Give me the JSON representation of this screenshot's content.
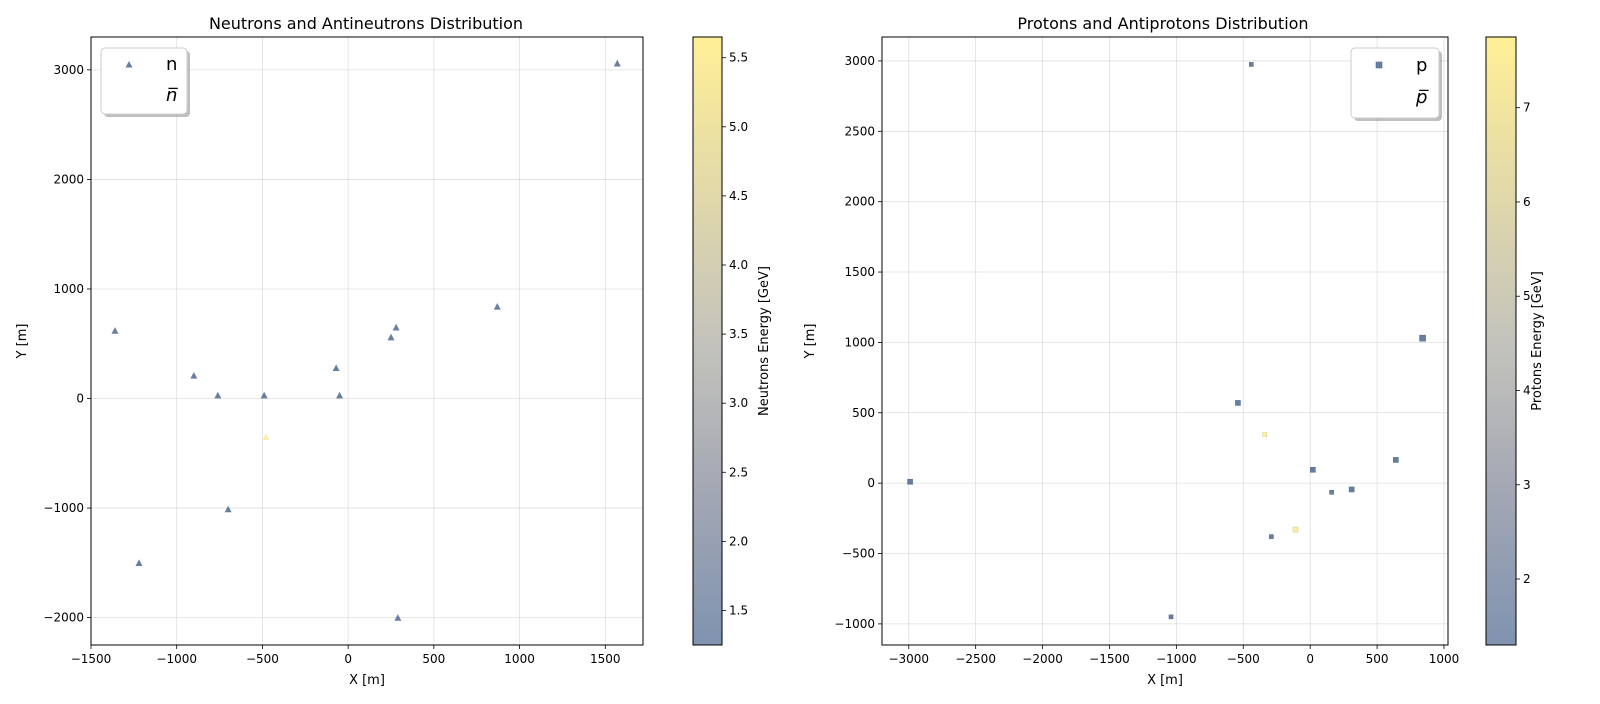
{
  "chart_data": [
    {
      "type": "scatter",
      "title": "Neutrons and Antineutrons Distribution",
      "xlabel": "X [m]",
      "ylabel": "Y [m]",
      "xlim": [
        -1500,
        1720
      ],
      "ylim": [
        -2250,
        3300
      ],
      "xticks": [
        -1500,
        -1000,
        -500,
        0,
        500,
        1000,
        1500
      ],
      "yticks": [
        -2000,
        -1000,
        0,
        1000,
        2000,
        3000
      ],
      "xtick_labels": [
        "−1500",
        "−1000",
        "−500",
        "0",
        "500",
        "1000",
        "1500"
      ],
      "ytick_labels": [
        "−2000",
        "−1000",
        "0",
        "1000",
        "2000",
        "3000"
      ],
      "grid": true,
      "marker": "triangle",
      "legend": {
        "position": "top-left",
        "entries": [
          "n",
          "n̅"
        ]
      },
      "colorbar": {
        "label": "Neutrons Energy [GeV]",
        "min": 1.25,
        "max": 5.65,
        "ticks": [
          1.5,
          2.0,
          2.5,
          3.0,
          3.5,
          4.0,
          4.5,
          5.0,
          5.5
        ],
        "tick_labels": [
          "1.5",
          "2.0",
          "2.5",
          "3.0",
          "3.5",
          "4.0",
          "4.5",
          "5.0",
          "5.5"
        ]
      },
      "series": [
        {
          "name": "n",
          "points": [
            {
              "x": -1360,
              "y": 620,
              "energy": 1.6
            },
            {
              "x": -1220,
              "y": -1500,
              "energy": 1.5
            },
            {
              "x": -900,
              "y": 210,
              "energy": 1.5
            },
            {
              "x": -760,
              "y": 30,
              "energy": 1.6
            },
            {
              "x": -700,
              "y": -1010,
              "energy": 1.5
            },
            {
              "x": -490,
              "y": 30,
              "energy": 1.7
            },
            {
              "x": -70,
              "y": 280,
              "energy": 1.6
            },
            {
              "x": -50,
              "y": 30,
              "energy": 1.5
            },
            {
              "x": 250,
              "y": 560,
              "energy": 1.9
            },
            {
              "x": 280,
              "y": 650,
              "energy": 2.2
            },
            {
              "x": 290,
              "y": -2000,
              "energy": 1.6
            },
            {
              "x": 870,
              "y": 840,
              "energy": 1.5
            },
            {
              "x": 1570,
              "y": 3060,
              "energy": 1.5
            }
          ]
        },
        {
          "name": "n̅",
          "points": [
            {
              "x": -480,
              "y": -350,
              "energy": 5.5
            }
          ]
        }
      ]
    },
    {
      "type": "scatter",
      "title": "Protons and Antiprotons Distribution",
      "xlabel": "X [m]",
      "ylabel": "Y [m]",
      "xlim": [
        -3200,
        1030
      ],
      "ylim": [
        -1150,
        3170
      ],
      "xticks": [
        -3000,
        -2500,
        -2000,
        -1500,
        -1000,
        -500,
        0,
        500,
        1000
      ],
      "yticks": [
        -1000,
        -500,
        0,
        500,
        1000,
        1500,
        2000,
        2500,
        3000
      ],
      "xtick_labels": [
        "−3000",
        "−2500",
        "−2000",
        "−1500",
        "−1000",
        "−500",
        "0",
        "500",
        "1000"
      ],
      "ytick_labels": [
        "−1000",
        "−500",
        "0",
        "500",
        "1000",
        "1500",
        "2000",
        "2500",
        "3000"
      ],
      "grid": true,
      "marker": "square",
      "legend": {
        "position": "top-right",
        "entries": [
          "p",
          "p̅"
        ]
      },
      "colorbar": {
        "label": "Protons Energy [GeV]",
        "min": 1.3,
        "max": 7.75,
        "ticks": [
          2,
          3,
          4,
          5,
          6,
          7
        ],
        "tick_labels": [
          "2",
          "3",
          "4",
          "5",
          "6",
          "7"
        ]
      },
      "series": [
        {
          "name": "p",
          "points": [
            {
              "x": -2990,
              "y": 10,
              "energy": 1.8,
              "size": 5
            },
            {
              "x": -1040,
              "y": -950,
              "energy": 1.6,
              "size": 4
            },
            {
              "x": -540,
              "y": 570,
              "energy": 1.6,
              "size": 5
            },
            {
              "x": -440,
              "y": 2975,
              "energy": 1.5,
              "size": 4
            },
            {
              "x": -290,
              "y": -380,
              "energy": 2.2,
              "size": 4
            },
            {
              "x": 20,
              "y": 95,
              "energy": 1.8,
              "size": 5
            },
            {
              "x": 160,
              "y": -65,
              "energy": 3.5,
              "size": 4
            },
            {
              "x": 310,
              "y": -45,
              "energy": 3.1,
              "size": 5
            },
            {
              "x": 640,
              "y": 165,
              "energy": 1.7,
              "size": 5
            },
            {
              "x": 840,
              "y": 1030,
              "energy": 1.6,
              "size": 6
            }
          ]
        },
        {
          "name": "p̅",
          "points": [
            {
              "x": -340,
              "y": 345,
              "energy": 7.6,
              "size": 4
            },
            {
              "x": -110,
              "y": -330,
              "energy": 7.4,
              "size": 5
            }
          ]
        }
      ]
    }
  ]
}
